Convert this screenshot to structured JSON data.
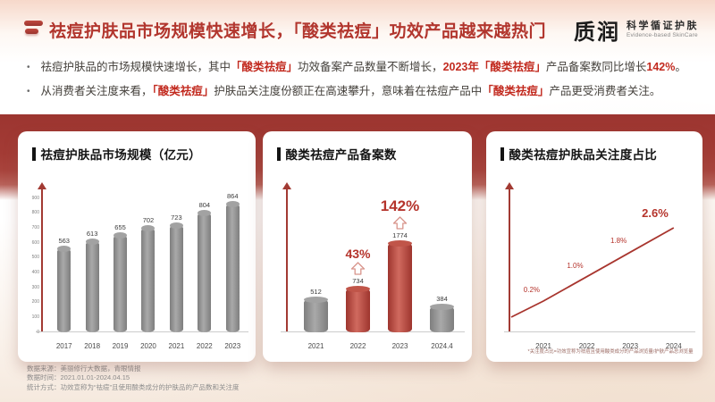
{
  "colors": {
    "accent_red": "#b2362e",
    "highlight_red": "#c22a1f",
    "band_red": "#a23b35",
    "bar_gray": "#8f8f8f",
    "bar_red": "#c0504a"
  },
  "header": {
    "title": "祛痘护肤品市场规模快速增长，「酸类祛痘」功效产品越来越热门",
    "logo": {
      "name": "质润",
      "tagline_cn": "科学循证护肤",
      "tagline_en": "Evidence-based SkinCare"
    }
  },
  "bullets": [
    {
      "segments": [
        {
          "t": "祛痘护肤品的市场规模快速增长，其中",
          "em": false
        },
        {
          "t": "「酸类祛痘」",
          "em": true
        },
        {
          "t": "功效备案产品数量不断增长，",
          "em": false
        },
        {
          "t": "2023年",
          "em": true
        },
        {
          "t": "「酸类祛痘」",
          "em": true
        },
        {
          "t": "产品备案数同比增长",
          "em": false
        },
        {
          "t": "142%",
          "em": true
        },
        {
          "t": "。",
          "em": false
        }
      ]
    },
    {
      "segments": [
        {
          "t": "从消费者关注度来看，",
          "em": false
        },
        {
          "t": "「酸类祛痘」",
          "em": true
        },
        {
          "t": "护肤品关注度份额正在高速攀升，意味着在祛痘产品中",
          "em": false
        },
        {
          "t": "「酸类祛痘」",
          "em": true
        },
        {
          "t": "产品更受消费者关注。",
          "em": false
        }
      ]
    }
  ],
  "chart_data": [
    {
      "type": "bar",
      "title": "祛痘护肤品市场规模（亿元）",
      "categories": [
        "2017",
        "2018",
        "2019",
        "2020",
        "2021",
        "2022",
        "2023"
      ],
      "values": [
        563,
        613,
        655,
        702,
        723,
        804,
        864
      ],
      "ylim": [
        0,
        900
      ],
      "yticks": [
        900,
        800,
        700,
        600,
        500,
        400,
        300,
        200,
        100,
        0
      ],
      "bar_colors": [
        "gray",
        "gray",
        "gray",
        "gray",
        "gray",
        "gray",
        "gray"
      ]
    },
    {
      "type": "bar",
      "title": "酸类祛痘产品备案数",
      "categories": [
        "2021",
        "2022",
        "2023",
        "2024.4"
      ],
      "values": [
        512,
        734,
        1774,
        384
      ],
      "bar_colors": [
        "gray",
        "red",
        "red",
        "gray"
      ],
      "annotations": [
        {
          "index": 1,
          "label": "43%",
          "size": "sm"
        },
        {
          "index": 2,
          "label": "142%",
          "size": "lg"
        }
      ]
    },
    {
      "type": "line",
      "title": "酸类祛痘护肤品关注度占比",
      "categories": [
        "2021",
        "2022",
        "2023",
        "2024"
      ],
      "values": [
        0.2,
        1.0,
        1.8,
        2.6
      ],
      "labels": [
        "0.2%",
        "1.0%",
        "1.8%",
        "2.6%"
      ],
      "footnote": "*关注度占比=功效宣称为祛痘且使用酸类成分的产品浏览量/护肤产品总浏览量"
    }
  ],
  "footer": {
    "lines": [
      "数据来源：美丽修行大数据，青眼情报",
      "数据时间：2021.01.01-2024.04.15",
      "统计方式：功效宣称为“祛痘”且使用酸类成分的护肤品的产品数和关注度"
    ]
  }
}
